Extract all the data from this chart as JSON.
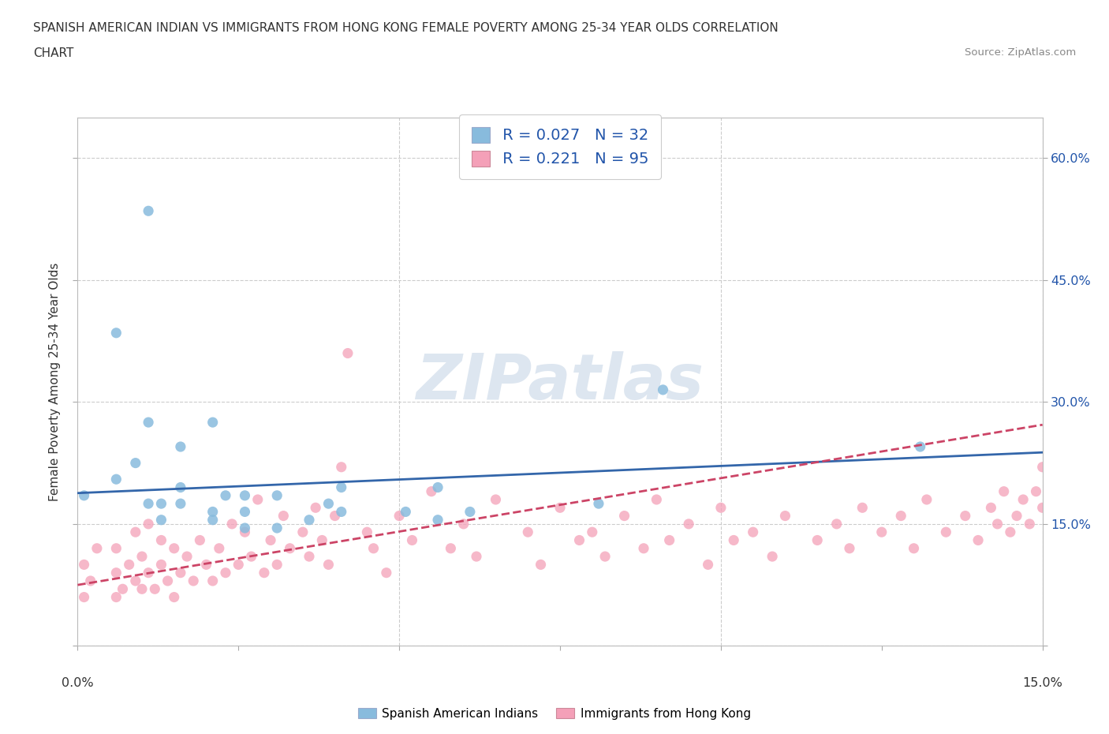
{
  "title_line1": "SPANISH AMERICAN INDIAN VS IMMIGRANTS FROM HONG KONG FEMALE POVERTY AMONG 25-34 YEAR OLDS CORRELATION",
  "title_line2": "CHART",
  "source_text": "Source: ZipAtlas.com",
  "ylabel": "Female Poverty Among 25-34 Year Olds",
  "xlim": [
    0.0,
    0.15
  ],
  "ylim": [
    0.0,
    0.65
  ],
  "y_ticks": [
    0.0,
    0.15,
    0.3,
    0.45,
    0.6
  ],
  "y_tick_labels": [
    "",
    "15.0%",
    "30.0%",
    "45.0%",
    "60.0%"
  ],
  "blue_color": "#88bbdd",
  "pink_color": "#f4a0b8",
  "blue_line_color": "#3366aa",
  "pink_line_color": "#cc4466",
  "watermark_color": "#dde6f0",
  "legend_R1": "R = 0.027",
  "legend_N1": "N = 32",
  "legend_R2": "R = 0.221",
  "legend_N2": "N = 95",
  "grid_color": "#cccccc",
  "background_color": "#ffffff",
  "blue_scatter_x": [
    0.001,
    0.006,
    0.006,
    0.009,
    0.011,
    0.011,
    0.011,
    0.013,
    0.013,
    0.016,
    0.016,
    0.016,
    0.021,
    0.021,
    0.021,
    0.023,
    0.026,
    0.026,
    0.026,
    0.031,
    0.031,
    0.036,
    0.039,
    0.041,
    0.041,
    0.051,
    0.056,
    0.056,
    0.061,
    0.081,
    0.091,
    0.131
  ],
  "blue_scatter_y": [
    0.185,
    0.385,
    0.205,
    0.225,
    0.175,
    0.275,
    0.535,
    0.155,
    0.175,
    0.175,
    0.195,
    0.245,
    0.155,
    0.165,
    0.275,
    0.185,
    0.145,
    0.165,
    0.185,
    0.145,
    0.185,
    0.155,
    0.175,
    0.165,
    0.195,
    0.165,
    0.155,
    0.195,
    0.165,
    0.175,
    0.315,
    0.245
  ],
  "pink_scatter_x": [
    0.001,
    0.001,
    0.002,
    0.003,
    0.006,
    0.006,
    0.006,
    0.007,
    0.008,
    0.009,
    0.009,
    0.01,
    0.01,
    0.011,
    0.011,
    0.012,
    0.013,
    0.013,
    0.014,
    0.015,
    0.015,
    0.016,
    0.017,
    0.018,
    0.019,
    0.02,
    0.021,
    0.022,
    0.023,
    0.024,
    0.025,
    0.026,
    0.027,
    0.028,
    0.029,
    0.03,
    0.031,
    0.032,
    0.033,
    0.035,
    0.036,
    0.037,
    0.038,
    0.039,
    0.04,
    0.041,
    0.042,
    0.045,
    0.046,
    0.048,
    0.05,
    0.052,
    0.055,
    0.058,
    0.06,
    0.062,
    0.065,
    0.07,
    0.072,
    0.075,
    0.078,
    0.08,
    0.082,
    0.085,
    0.088,
    0.09,
    0.092,
    0.095,
    0.098,
    0.1,
    0.102,
    0.105,
    0.108,
    0.11,
    0.115,
    0.118,
    0.12,
    0.122,
    0.125,
    0.128,
    0.13,
    0.132,
    0.135,
    0.138,
    0.14,
    0.142,
    0.143,
    0.144,
    0.145,
    0.146,
    0.147,
    0.148,
    0.149,
    0.15,
    0.15
  ],
  "pink_scatter_y": [
    0.06,
    0.1,
    0.08,
    0.12,
    0.06,
    0.09,
    0.12,
    0.07,
    0.1,
    0.08,
    0.14,
    0.07,
    0.11,
    0.09,
    0.15,
    0.07,
    0.1,
    0.13,
    0.08,
    0.06,
    0.12,
    0.09,
    0.11,
    0.08,
    0.13,
    0.1,
    0.08,
    0.12,
    0.09,
    0.15,
    0.1,
    0.14,
    0.11,
    0.18,
    0.09,
    0.13,
    0.1,
    0.16,
    0.12,
    0.14,
    0.11,
    0.17,
    0.13,
    0.1,
    0.16,
    0.22,
    0.36,
    0.14,
    0.12,
    0.09,
    0.16,
    0.13,
    0.19,
    0.12,
    0.15,
    0.11,
    0.18,
    0.14,
    0.1,
    0.17,
    0.13,
    0.14,
    0.11,
    0.16,
    0.12,
    0.18,
    0.13,
    0.15,
    0.1,
    0.17,
    0.13,
    0.14,
    0.11,
    0.16,
    0.13,
    0.15,
    0.12,
    0.17,
    0.14,
    0.16,
    0.12,
    0.18,
    0.14,
    0.16,
    0.13,
    0.17,
    0.15,
    0.19,
    0.14,
    0.16,
    0.18,
    0.15,
    0.19,
    0.17,
    0.22
  ],
  "blue_trend_x": [
    0.0,
    0.15
  ],
  "blue_trend_y": [
    0.188,
    0.238
  ],
  "pink_trend_x": [
    0.0,
    0.15
  ],
  "pink_trend_y": [
    0.075,
    0.272
  ],
  "series1_label": "Spanish American Indians",
  "series2_label": "Immigrants from Hong Kong"
}
